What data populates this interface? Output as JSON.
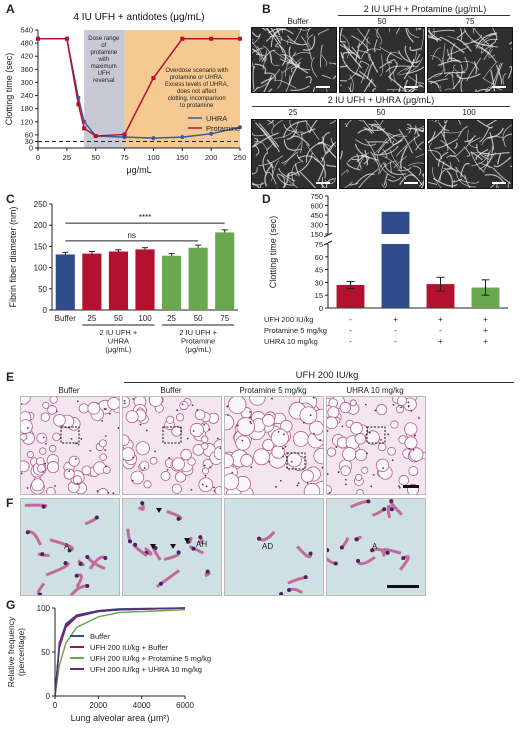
{
  "panels": {
    "A": "A",
    "B": "B",
    "C": "C",
    "D": "D",
    "E": "E",
    "F": "F",
    "G": "G"
  },
  "colors": {
    "uhra": "#3a5b9c",
    "protamine": "#b3112e",
    "green": "#6aa84f",
    "orange": "#f7c992",
    "gray_band": "#c9c9d6",
    "blue_bar": "#2e4d8a"
  },
  "panel_b": {
    "top_header": "2 IU UFH + Protamine (μg/mL)",
    "top_labels": [
      "Buffer",
      "50",
      "75"
    ],
    "bottom_header": "2 IU UFH + UHRA (μg/mL)",
    "bottom_labels": [
      "25",
      "50",
      "100"
    ]
  },
  "panel_e": {
    "header": "UFH 200 IU/kg",
    "labels": [
      "Buffer",
      "Buffer",
      "Protamine 5 mg/kg",
      "UHRA 10 mg/kg"
    ]
  },
  "panel_f": {
    "labels": [
      "A",
      "AH",
      "AD",
      "A"
    ]
  },
  "chart_data": [
    {
      "id": "A",
      "type": "line",
      "title": "4 IU UFH + antidotes (μg/mL)",
      "xlabel": "μg/mL",
      "ylabel": "Clotting time (sec)",
      "xlim": [
        0,
        250
      ],
      "ylim": [
        0,
        540
      ],
      "x_ticks": [
        0,
        25,
        50,
        75,
        100,
        150,
        200,
        250
      ],
      "y_ticks": [
        0,
        30,
        60,
        120,
        180,
        240,
        300,
        360,
        420,
        480,
        540
      ],
      "series": [
        {
          "name": "UHRA",
          "x": [
            0,
            25,
            35,
            40,
            50,
            75,
            100,
            150,
            200,
            250
          ],
          "y": [
            500,
            500,
            230,
            120,
            55,
            50,
            45,
            50,
            65,
            95
          ]
        },
        {
          "name": "Protamine",
          "x": [
            0,
            25,
            35,
            40,
            50,
            75,
            100,
            150,
            200,
            250
          ],
          "y": [
            500,
            500,
            200,
            90,
            55,
            62,
            320,
            500,
            500,
            500
          ]
        }
      ],
      "reference_line": 30,
      "annotations": [
        "Dose range of protamine with maximum UFH reversal",
        "Overdose scenario with protamine or UHRA. Excess levels of UHRA, does not affect clotting, incomparison to protamine"
      ]
    },
    {
      "id": "C",
      "type": "bar",
      "ylabel": "Fibrin fiber diameter (nm)",
      "ylim": [
        0,
        250
      ],
      "y_ticks": [
        0,
        50,
        100,
        150,
        200,
        250
      ],
      "categories": [
        "Buffer",
        "25",
        "50",
        "100",
        "25",
        "50",
        "75"
      ],
      "values": [
        131,
        133,
        138,
        143,
        128,
        147,
        183
      ],
      "errors": [
        5,
        5,
        4,
        4,
        5,
        6,
        6
      ],
      "group_labels": [
        "2 IU UFH + UHRA (μg/mL)",
        "2 IU UFH + Protamine (μg/mL)"
      ],
      "sig_labels": [
        "ns",
        "****"
      ]
    },
    {
      "id": "D",
      "type": "bar",
      "ylabel": "Clotting time (sec)",
      "y_ticks": [
        0,
        15,
        30,
        45,
        60,
        75,
        150,
        300,
        450,
        600,
        750
      ],
      "values": [
        27,
        500,
        28,
        24
      ],
      "errors": [
        4,
        0,
        8,
        9
      ],
      "rows": [
        {
          "label": "UFH 200 IU/kg",
          "marks": [
            "-",
            "+",
            "+",
            "+"
          ]
        },
        {
          "label": "Protamine 5 mg/kg",
          "marks": [
            "-",
            "-",
            "-",
            "+"
          ]
        },
        {
          "label": "UHRA 10 mg/kg",
          "marks": [
            "-",
            "-",
            "+",
            "+"
          ]
        }
      ]
    },
    {
      "id": "G",
      "type": "line",
      "xlabel": "Lung alveolar area (μm²)",
      "ylabel": "Relative frequency (percentage)",
      "xlim": [
        0,
        6000
      ],
      "ylim": [
        0,
        100
      ],
      "x_ticks": [
        0,
        2000,
        4000,
        6000
      ],
      "y_ticks": [
        0,
        50,
        100
      ],
      "series": [
        {
          "name": "Buffer",
          "x": [
            0,
            200,
            500,
            1000,
            2000,
            3000,
            6000
          ],
          "y": [
            0,
            60,
            82,
            92,
            97,
            99,
            100
          ]
        },
        {
          "name": "UFH 200 IU/kg + Buffer",
          "x": [
            0,
            200,
            500,
            1000,
            2000,
            3000,
            6000
          ],
          "y": [
            0,
            55,
            78,
            90,
            96,
            98,
            100
          ]
        },
        {
          "name": "UFH 200 IU/kg + Protamine 5 mg/kg",
          "x": [
            0,
            200,
            500,
            1000,
            2000,
            3000,
            6000
          ],
          "y": [
            0,
            35,
            60,
            78,
            90,
            95,
            98
          ]
        },
        {
          "name": "UFH 200 IU/kg + UHRA 10 mg/kg",
          "x": [
            0,
            200,
            500,
            1000,
            2000,
            3000,
            6000
          ],
          "y": [
            0,
            58,
            80,
            91,
            96,
            98,
            100
          ]
        }
      ]
    }
  ]
}
